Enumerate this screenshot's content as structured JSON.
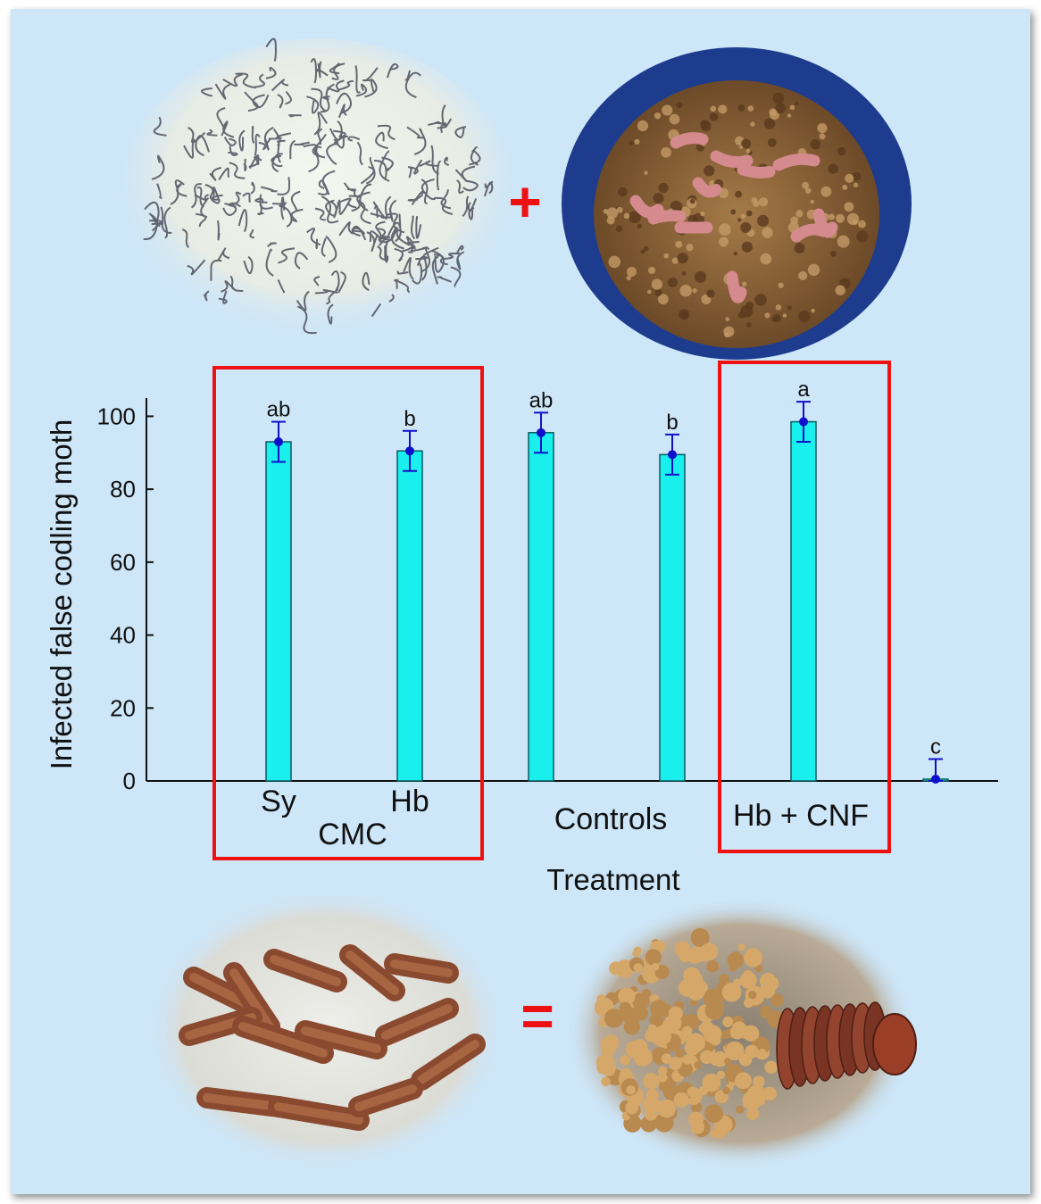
{
  "figure": {
    "plus_sign": "+",
    "equals_sign": "=",
    "photos": {
      "nematodes": "photo of nematodes (infective juveniles)",
      "larvae_soil": "photo of larvae in soil container",
      "infected_larvae": "photo of infected dead larvae",
      "larva_closeup": "photo close-up of infected larva"
    }
  },
  "chart_data": {
    "type": "bar",
    "xlabel": "Treatment",
    "ylabel": "Infected false codling moth",
    "ylim": [
      0,
      105
    ],
    "yticks": [
      0,
      20,
      40,
      60,
      80,
      100
    ],
    "categories": [
      "Sy",
      "Hb",
      "",
      "",
      "",
      ""
    ],
    "series": [
      {
        "values": [
          93,
          90.5,
          95.5,
          89.5,
          98.5,
          0.5
        ],
        "errors": [
          5.5,
          5.5,
          5.5,
          5.5,
          5.5,
          5.5
        ],
        "significance": [
          "ab",
          "b",
          "ab",
          "b",
          "a",
          "c"
        ]
      }
    ],
    "group_labels": [
      {
        "text": "CMC"
      },
      {
        "text": "Controls"
      },
      {
        "text": "Hb + CNF"
      }
    ],
    "bar_color": "#19f0ee",
    "error_color": "#1010cc",
    "highlight_color": "#ee1111"
  }
}
